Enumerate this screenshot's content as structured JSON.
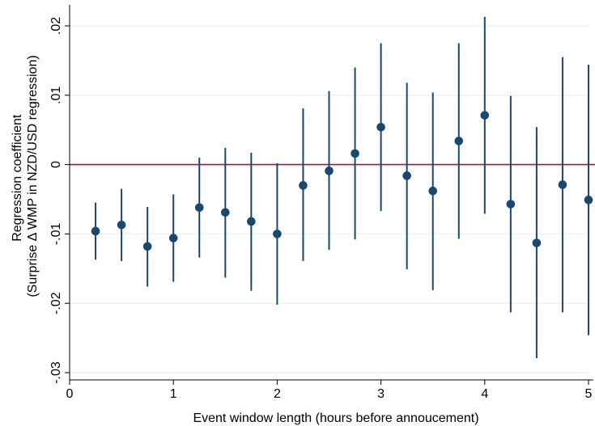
{
  "chart_data": {
    "type": "scatter",
    "title": "",
    "xlabel": "Event window length (hours before annoucement)",
    "ylabel_lines": [
      "Regression coefficient",
      "(Surprise Δ WMP in NZD/USD regression)"
    ],
    "xlim": [
      0,
      5
    ],
    "ylim": [
      -0.03,
      0.02
    ],
    "x_ticks": [
      0,
      1,
      2,
      3,
      4,
      5
    ],
    "x_tick_labels": [
      "0",
      "1",
      "2",
      "3",
      "4",
      "5"
    ],
    "y_ticks": [
      -0.03,
      -0.02,
      -0.01,
      0,
      0.01,
      0.02
    ],
    "y_tick_labels": [
      "-.03",
      "-.02",
      "-.01",
      "0",
      ".01",
      ".02"
    ],
    "grid": true,
    "reference_line": 0,
    "colors": {
      "point": "#1a476f",
      "error_bar": "#1a476f",
      "reference_line": "#b0103a",
      "grid": "#eaf2f3",
      "axis": "#000000"
    },
    "points": [
      {
        "x": 0.25,
        "y": -0.0096,
        "lower": -0.0137,
        "upper": -0.0055
      },
      {
        "x": 0.5,
        "y": -0.0087,
        "lower": -0.0139,
        "upper": -0.0035
      },
      {
        "x": 0.75,
        "y": -0.0118,
        "lower": -0.0176,
        "upper": -0.0061
      },
      {
        "x": 1.0,
        "y": -0.0106,
        "lower": -0.0169,
        "upper": -0.0043
      },
      {
        "x": 1.25,
        "y": -0.0062,
        "lower": -0.0134,
        "upper": 0.001
      },
      {
        "x": 1.5,
        "y": -0.0069,
        "lower": -0.0163,
        "upper": 0.0024
      },
      {
        "x": 1.75,
        "y": -0.0082,
        "lower": -0.0182,
        "upper": 0.0017
      },
      {
        "x": 2.0,
        "y": -0.01,
        "lower": -0.0202,
        "upper": 0.0002
      },
      {
        "x": 2.25,
        "y": -0.003,
        "lower": -0.0139,
        "upper": 0.0081
      },
      {
        "x": 2.5,
        "y": -0.0009,
        "lower": -0.0123,
        "upper": 0.0106
      },
      {
        "x": 2.75,
        "y": 0.0016,
        "lower": -0.0108,
        "upper": 0.014
      },
      {
        "x": 3.0,
        "y": 0.0054,
        "lower": -0.0067,
        "upper": 0.0175
      },
      {
        "x": 3.25,
        "y": -0.0016,
        "lower": -0.0151,
        "upper": 0.0118
      },
      {
        "x": 3.5,
        "y": -0.0038,
        "lower": -0.0181,
        "upper": 0.0104
      },
      {
        "x": 3.75,
        "y": 0.0034,
        "lower": -0.0107,
        "upper": 0.0175
      },
      {
        "x": 4.0,
        "y": 0.0071,
        "lower": -0.0071,
        "upper": 0.0213
      },
      {
        "x": 4.25,
        "y": -0.0057,
        "lower": -0.0213,
        "upper": 0.0099
      },
      {
        "x": 4.5,
        "y": -0.0113,
        "lower": -0.0279,
        "upper": 0.0054
      },
      {
        "x": 4.75,
        "y": -0.0029,
        "lower": -0.0213,
        "upper": 0.0155
      },
      {
        "x": 5.0,
        "y": -0.0051,
        "lower": -0.0246,
        "upper": 0.0144
      }
    ]
  }
}
